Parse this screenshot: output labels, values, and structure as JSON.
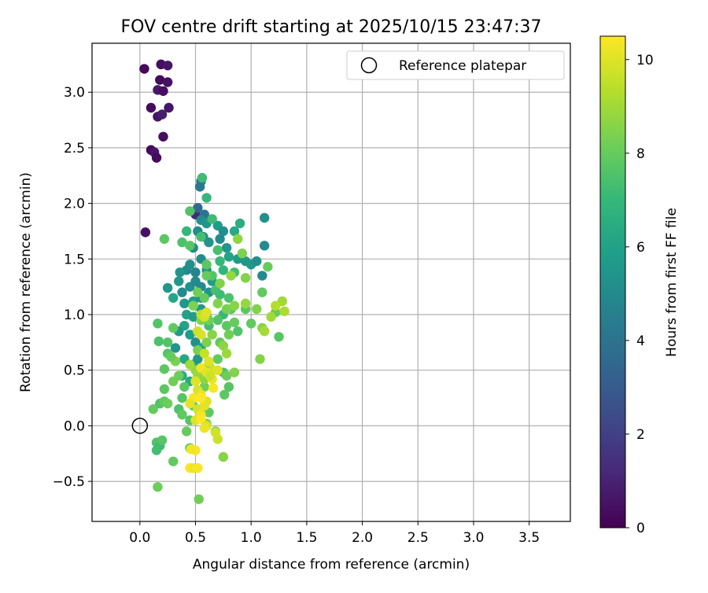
{
  "chart_data": {
    "type": "scatter",
    "title": "FOV centre drift starting at 2025/10/15 23:47:37",
    "xlabel": "Angular distance from reference (arcmin)",
    "ylabel": "Rotation from reference (arcmin)",
    "xlim": [
      -0.43,
      3.87
    ],
    "ylim": [
      -0.86,
      3.44
    ],
    "xticks": [
      "0.0",
      "0.5",
      "1.0",
      "1.5",
      "2.0",
      "2.5",
      "3.0",
      "3.5"
    ],
    "yticks": [
      "−0.5",
      "0.0",
      "0.5",
      "1.0",
      "1.5",
      "2.0",
      "2.5",
      "3.0"
    ],
    "grid": true,
    "colormap": "viridis",
    "colorbar": {
      "label": "Hours from first FF file",
      "range": [
        0,
        10.5
      ],
      "ticks": [
        "0",
        "2",
        "4",
        "6",
        "8",
        "10"
      ]
    },
    "legend": {
      "location": "upper right",
      "entries": [
        {
          "label": "Reference platepar",
          "marker": "open-circle"
        }
      ]
    },
    "reference_point": {
      "x": 0.0,
      "y": 0.0
    },
    "points": [
      [
        0.04,
        3.21,
        0.2
      ],
      [
        0.19,
        3.25,
        0.4
      ],
      [
        0.25,
        3.24,
        0.6
      ],
      [
        0.18,
        3.11,
        0.3
      ],
      [
        0.25,
        3.09,
        0.5
      ],
      [
        0.16,
        3.02,
        0.7
      ],
      [
        0.21,
        3.01,
        0.4
      ],
      [
        0.1,
        2.86,
        0.3
      ],
      [
        0.26,
        2.86,
        0.6
      ],
      [
        0.16,
        2.78,
        0.5
      ],
      [
        0.2,
        2.8,
        0.8
      ],
      [
        0.21,
        2.6,
        0.4
      ],
      [
        0.1,
        2.48,
        0.2
      ],
      [
        0.13,
        2.46,
        0.6
      ],
      [
        0.15,
        2.41,
        0.3
      ],
      [
        0.05,
        1.74,
        0.5
      ],
      [
        0.55,
        2.2,
        3.8
      ],
      [
        0.54,
        2.15,
        4.2
      ],
      [
        0.5,
        1.9,
        1.2
      ],
      [
        0.58,
        1.9,
        4.0
      ],
      [
        0.52,
        1.96,
        3.5
      ],
      [
        0.56,
        2.23,
        7.2
      ],
      [
        0.6,
        2.05,
        7.0
      ],
      [
        0.45,
        1.93,
        7.6
      ],
      [
        0.55,
        1.85,
        5.2
      ],
      [
        0.6,
        1.82,
        5.5
      ],
      [
        0.52,
        1.75,
        5.0
      ],
      [
        0.57,
        1.7,
        4.8
      ],
      [
        0.48,
        1.6,
        5.0
      ],
      [
        0.62,
        1.65,
        5.4
      ],
      [
        0.7,
        1.8,
        5.8
      ],
      [
        0.75,
        1.75,
        5.2
      ],
      [
        0.72,
        1.68,
        5.0
      ],
      [
        0.78,
        1.6,
        5.5
      ],
      [
        0.85,
        1.75,
        6.3
      ],
      [
        0.9,
        1.82,
        6.5
      ],
      [
        0.8,
        1.52,
        6.0
      ],
      [
        0.88,
        1.5,
        5.8
      ],
      [
        0.95,
        1.48,
        5.5
      ],
      [
        1.0,
        1.45,
        5.6
      ],
      [
        1.05,
        1.48,
        5.2
      ],
      [
        1.1,
        1.35,
        5.0
      ],
      [
        1.12,
        1.62,
        5.0
      ],
      [
        1.12,
        1.87,
        5.3
      ],
      [
        0.42,
        1.4,
        5.0
      ],
      [
        0.45,
        1.45,
        5.2
      ],
      [
        0.5,
        1.38,
        4.8
      ],
      [
        0.55,
        1.5,
        5.1
      ],
      [
        0.6,
        1.4,
        5.4
      ],
      [
        0.35,
        1.3,
        5.5
      ],
      [
        0.38,
        1.2,
        5.0
      ],
      [
        0.45,
        1.25,
        5.3
      ],
      [
        0.5,
        1.3,
        5.0
      ],
      [
        0.55,
        1.25,
        4.9
      ],
      [
        0.4,
        1.1,
        5.6
      ],
      [
        0.48,
        1.12,
        5.8
      ],
      [
        0.55,
        1.15,
        5.2
      ],
      [
        0.62,
        1.2,
        5.4
      ],
      [
        0.65,
        1.3,
        5.8
      ],
      [
        0.42,
        1.0,
        6.0
      ],
      [
        0.48,
        0.98,
        5.7
      ],
      [
        0.55,
        1.05,
        5.5
      ],
      [
        0.6,
        1.0,
        6.2
      ],
      [
        0.4,
        0.9,
        6.0
      ],
      [
        0.35,
        0.85,
        5.6
      ],
      [
        0.45,
        0.82,
        5.8
      ],
      [
        0.5,
        0.75,
        5.2
      ],
      [
        0.55,
        0.7,
        6.0
      ],
      [
        0.32,
        0.7,
        5.4
      ],
      [
        0.4,
        0.6,
        6.2
      ],
      [
        0.48,
        0.55,
        5.9
      ],
      [
        0.52,
        0.6,
        5.5
      ],
      [
        0.38,
        0.45,
        6.5
      ],
      [
        0.45,
        0.4,
        6.3
      ],
      [
        0.25,
        1.24,
        5.5
      ],
      [
        0.36,
        1.38,
        5.4
      ],
      [
        0.3,
        1.15,
        6.2
      ],
      [
        0.38,
        1.65,
        7.5
      ],
      [
        0.42,
        1.75,
        7.0
      ],
      [
        0.55,
        1.7,
        7.3
      ],
      [
        0.65,
        1.86,
        7.2
      ],
      [
        0.45,
        1.62,
        7.7
      ],
      [
        0.22,
        1.68,
        7.8
      ],
      [
        0.7,
        1.58,
        7.4
      ],
      [
        0.72,
        1.48,
        7.0
      ],
      [
        0.85,
        1.38,
        7.3
      ],
      [
        0.75,
        1.4,
        6.9
      ],
      [
        0.6,
        1.45,
        7.8
      ],
      [
        0.65,
        1.35,
        7.6
      ],
      [
        0.68,
        1.22,
        7.4
      ],
      [
        0.72,
        1.18,
        7.2
      ],
      [
        0.8,
        1.15,
        7.5
      ],
      [
        0.82,
        1.05,
        7.8
      ],
      [
        0.75,
        1.0,
        7.1
      ],
      [
        0.7,
        0.95,
        7.6
      ],
      [
        0.78,
        0.9,
        7.8
      ],
      [
        0.62,
        0.9,
        7.3
      ],
      [
        1.15,
        1.43,
        8.0
      ],
      [
        1.1,
        1.2,
        7.9
      ],
      [
        1.22,
        1.02,
        8.0
      ],
      [
        1.25,
        0.8,
        7.7
      ],
      [
        1.0,
        0.92,
        7.9
      ],
      [
        0.95,
        1.05,
        7.8
      ],
      [
        0.85,
        0.93,
        8.0
      ],
      [
        0.88,
        0.85,
        7.6
      ],
      [
        0.8,
        0.82,
        8.2
      ],
      [
        0.72,
        0.75,
        7.9
      ],
      [
        0.4,
        0.35,
        7.8
      ],
      [
        0.38,
        0.25,
        7.7
      ],
      [
        0.35,
        0.15,
        7.5
      ],
      [
        0.38,
        0.1,
        7.9
      ],
      [
        0.45,
        0.05,
        7.6
      ],
      [
        0.48,
        0.18,
        7.8
      ],
      [
        0.42,
        -0.05,
        8.0
      ],
      [
        0.45,
        -0.2,
        7.8
      ],
      [
        0.3,
        -0.32,
        7.9
      ],
      [
        0.15,
        -0.15,
        7.5
      ],
      [
        0.18,
        -0.18,
        7.2
      ],
      [
        0.2,
        -0.13,
        7.7
      ],
      [
        0.15,
        -0.22,
        7.3
      ],
      [
        0.16,
        -0.55,
        8.1
      ],
      [
        0.53,
        -0.66,
        8.2
      ],
      [
        0.12,
        0.15,
        8.0
      ],
      [
        0.18,
        0.2,
        7.6
      ],
      [
        0.22,
        0.22,
        7.9
      ],
      [
        0.25,
        0.2,
        8.1
      ],
      [
        0.22,
        0.33,
        7.8
      ],
      [
        0.16,
        0.92,
        7.6
      ],
      [
        0.17,
        0.76,
        7.5
      ],
      [
        0.22,
        0.51,
        7.8
      ],
      [
        0.25,
        0.65,
        7.7
      ],
      [
        0.3,
        0.88,
        7.9
      ],
      [
        0.75,
        0.48,
        7.5
      ],
      [
        0.7,
        0.6,
        7.9
      ],
      [
        0.78,
        0.45,
        8.1
      ],
      [
        0.76,
        0.28,
        7.8
      ],
      [
        0.8,
        0.35,
        7.7
      ],
      [
        0.55,
        0.25,
        8.0
      ],
      [
        0.58,
        0.35,
        8.2
      ],
      [
        0.62,
        0.12,
        7.9
      ],
      [
        0.68,
        -0.05,
        8.0
      ],
      [
        0.6,
        0.02,
        8.3
      ],
      [
        0.35,
        0.45,
        8.1
      ],
      [
        0.32,
        0.58,
        8.4
      ],
      [
        0.28,
        0.62,
        8.0
      ],
      [
        0.25,
        0.75,
        7.6
      ],
      [
        0.3,
        0.4,
        8.2
      ],
      [
        0.52,
        1.2,
        8.2
      ],
      [
        0.48,
        1.08,
        8.4
      ],
      [
        0.58,
        1.15,
        8.0
      ],
      [
        0.7,
        1.1,
        8.5
      ],
      [
        0.78,
        1.05,
        8.3
      ],
      [
        0.62,
        0.95,
        8.2
      ],
      [
        0.55,
        0.95,
        8.5
      ],
      [
        0.65,
        0.82,
        8.6
      ],
      [
        0.6,
        0.75,
        8.4
      ],
      [
        0.52,
        0.68,
        8.3
      ],
      [
        0.6,
        1.35,
        8.0
      ],
      [
        0.72,
        1.28,
        8.5
      ],
      [
        0.85,
        1.08,
        8.6
      ],
      [
        0.95,
        1.1,
        8.8
      ],
      [
        1.05,
        1.05,
        8.5
      ],
      [
        0.88,
        1.68,
        8.7
      ],
      [
        0.92,
        1.55,
        8.4
      ],
      [
        0.95,
        1.33,
        8.5
      ],
      [
        1.1,
        0.88,
        8.6
      ],
      [
        1.08,
        0.6,
        8.5
      ],
      [
        0.82,
        1.35,
        8.8
      ],
      [
        0.75,
        0.72,
        8.7
      ],
      [
        0.78,
        0.65,
        8.9
      ],
      [
        0.85,
        0.48,
        8.5
      ],
      [
        0.75,
        -0.28,
        8.6
      ],
      [
        0.5,
        0.5,
        8.8
      ],
      [
        0.45,
        0.55,
        9.0
      ],
      [
        0.52,
        0.45,
        8.9
      ],
      [
        0.58,
        0.42,
        8.7
      ],
      [
        0.62,
        0.55,
        9.1
      ],
      [
        1.28,
        1.12,
        9.0
      ],
      [
        1.3,
        1.03,
        9.2
      ],
      [
        1.22,
        1.08,
        9.3
      ],
      [
        1.12,
        0.85,
        9.1
      ],
      [
        1.18,
        0.98,
        9.0
      ],
      [
        0.55,
        1.0,
        9.5
      ],
      [
        0.58,
        0.98,
        9.8
      ],
      [
        0.6,
        1.02,
        10.0
      ],
      [
        0.52,
        0.85,
        9.7
      ],
      [
        0.55,
        0.82,
        9.9
      ],
      [
        0.58,
        0.65,
        9.6
      ],
      [
        0.62,
        0.58,
        10.0
      ],
      [
        0.66,
        0.5,
        9.8
      ],
      [
        0.65,
        0.42,
        10.2
      ],
      [
        0.55,
        0.52,
        10.3
      ],
      [
        0.6,
        0.48,
        10.1
      ],
      [
        0.5,
        0.4,
        10.0
      ],
      [
        0.52,
        0.32,
        9.9
      ],
      [
        0.55,
        0.28,
        10.2
      ],
      [
        0.6,
        0.22,
        10.0
      ],
      [
        0.48,
        0.25,
        10.4
      ],
      [
        0.45,
        0.2,
        10.1
      ],
      [
        0.52,
        0.15,
        9.8
      ],
      [
        0.55,
        0.1,
        10.3
      ],
      [
        0.5,
        0.05,
        10.0
      ],
      [
        0.55,
        0.06,
        10.5
      ],
      [
        0.6,
        0.0,
        9.9
      ],
      [
        0.58,
        -0.02,
        10.2
      ],
      [
        0.5,
        -0.22,
        10.4
      ],
      [
        0.46,
        -0.21,
        10.3
      ],
      [
        0.7,
        -0.12,
        9.7
      ],
      [
        0.68,
        -0.06,
        9.8
      ],
      [
        0.45,
        -0.38,
        10.5
      ],
      [
        0.48,
        -0.38,
        10.2
      ],
      [
        0.52,
        -0.38,
        10.4
      ],
      [
        0.7,
        0.5,
        10.0
      ],
      [
        0.66,
        0.34,
        10.4
      ],
      [
        0.58,
        0.18,
        10.1
      ],
      [
        0.63,
        0.45,
        9.7
      ],
      [
        0.55,
        0.25,
        10.5
      ]
    ]
  }
}
